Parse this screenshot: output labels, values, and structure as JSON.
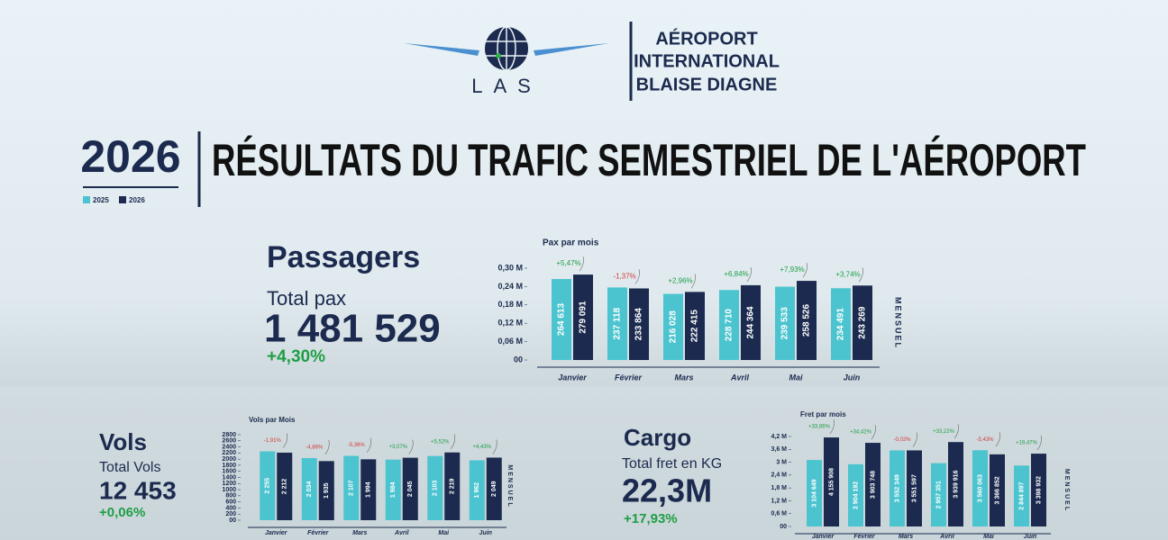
{
  "header": {
    "logo": "LAS",
    "airport": [
      "AÉROPORT",
      "INTERNATIONAL",
      "BLAISE DIAGNE"
    ],
    "year": "2026",
    "title": "RÉSULTATS DU TRAFIC SEMESTRIEL DE L'AÉROPORT"
  },
  "kpis": [
    {
      "title": "Passagers",
      "label": "Total pax",
      "total": "1 481 529",
      "change": "+4,30%"
    },
    {
      "title": "Vols",
      "label": "Total Vols",
      "total": "12 453",
      "change": "+0,06%"
    },
    {
      "title": "Cargo",
      "label": "Total fret en KG",
      "total": "22,3M",
      "change": "+17,93%"
    }
  ],
  "chart_data": [
    {
      "type": "bar",
      "title": "Pax par mois",
      "side_label": "MENSUEL",
      "categories": [
        "Janvier",
        "Février",
        "Mars",
        "Avril",
        "Mai",
        "Juin"
      ],
      "series": [
        {
          "name": "2025",
          "color": "#4cc4cf",
          "values": [
            264613,
            237118,
            216028,
            228710,
            239533,
            234491
          ],
          "value_labels": [
            "264 613",
            "237 118",
            "216 028",
            "228 710",
            "239 533",
            "234 491"
          ]
        },
        {
          "name": "2026",
          "color": "#1b2a4e",
          "values": [
            279091,
            233864,
            222415,
            244364,
            258526,
            243269
          ],
          "value_labels": [
            "279 091",
            "233 864",
            "222 415",
            "244 364",
            "258 526",
            "243 269"
          ]
        }
      ],
      "annotations": [
        "+5,47%",
        "-1,37%",
        "+2,96%",
        "+6,84%",
        "+7,93%",
        "+3,74%"
      ],
      "ylim": [
        0,
        300000
      ],
      "yticks": [
        {
          "value": 0,
          "label": "00"
        },
        {
          "value": 60000,
          "label": "0,06 M"
        },
        {
          "value": 120000,
          "label": "0,12 M"
        },
        {
          "value": 180000,
          "label": "0,18 M"
        },
        {
          "value": 240000,
          "label": "0,24 M"
        },
        {
          "value": 300000,
          "label": "0,30 M"
        }
      ]
    },
    {
      "type": "bar",
      "title": "Vols par Mois",
      "side_label": "MENSUEL",
      "categories": [
        "Janvier",
        "Février",
        "Mars",
        "Avril",
        "Mai",
        "Juin"
      ],
      "series": [
        {
          "name": "2025",
          "color": "#4cc4cf",
          "values": [
            2255,
            2034,
            2107,
            1984,
            2103,
            1962
          ],
          "value_labels": [
            "2 255",
            "2 034",
            "2 107",
            "1 984",
            "2 103",
            "1 962"
          ]
        },
        {
          "name": "2026",
          "color": "#1b2a4e",
          "values": [
            2212,
            1935,
            1994,
            2045,
            2219,
            2049
          ],
          "value_labels": [
            "2 212",
            "1 935",
            "1 994",
            "2 045",
            "2 219",
            "2 049"
          ]
        }
      ],
      "annotations": [
        "-1,91%",
        "-4,86%",
        "-5,36%",
        "+3,07%",
        "+5,52%",
        "+4,43%"
      ],
      "ylim": [
        0,
        2800
      ],
      "yticks": [
        {
          "value": 0,
          "label": "00"
        },
        200,
        400,
        600,
        800,
        1000,
        1200,
        1400,
        1600,
        1800,
        2000,
        2200,
        2400,
        2600,
        2800
      ]
    },
    {
      "type": "bar",
      "title": "Fret par mois",
      "side_label": "MENSUEL",
      "categories": [
        "Janvier",
        "Février",
        "Mars",
        "Avril",
        "Mai",
        "Juin"
      ],
      "series": [
        {
          "name": "2025",
          "color": "#4cc4cf",
          "values": [
            3104649,
            2904192,
            3552349,
            2957351,
            3560063,
            2844897
          ],
          "value_labels": [
            "3 104 649",
            "2 904 192",
            "3 552 349",
            "2 957 351",
            "3 560 063",
            "2 844 897"
          ]
        },
        {
          "name": "2026",
          "color": "#1b2a4e",
          "values": [
            4155908,
            3903748,
            3551597,
            3939916,
            3366852,
            3398932
          ],
          "value_labels": [
            "4 155 908",
            "3 903 748",
            "3 551 597",
            "3 939 916",
            "3 366 852",
            "3 398 932"
          ]
        }
      ],
      "annotations": [
        "+33,86%",
        "+34,42%",
        "-0,02%",
        "+33,22%",
        "-5,43%",
        "+19,47%"
      ],
      "ylim": [
        0,
        4200000
      ],
      "yticks": [
        {
          "value": 0,
          "label": "00"
        },
        {
          "value": 600000,
          "label": "0,6 M"
        },
        {
          "value": 1200000,
          "label": "1,2 M"
        },
        {
          "value": 1800000,
          "label": "1,8 M"
        },
        {
          "value": 2400000,
          "label": "2,4 M"
        },
        {
          "value": 3000000,
          "label": "3 M"
        },
        {
          "value": 3600000,
          "label": "3,6 M"
        },
        {
          "value": 4200000,
          "label": "4,2 M"
        }
      ]
    }
  ]
}
